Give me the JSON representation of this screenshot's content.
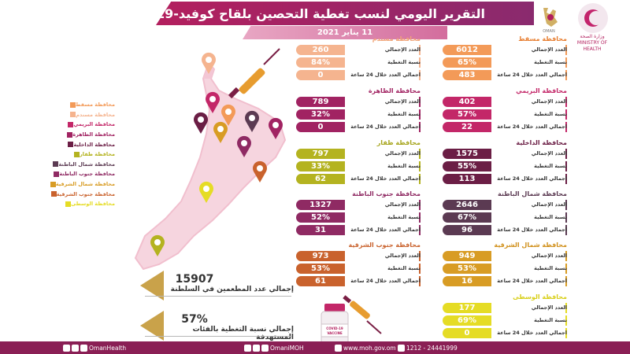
{
  "header": {
    "title": "التقرير اليومي لنسب تغطية التحصين بلقاح كوفيد-19",
    "date": "11 يناير 2021",
    "moh_logo_text": "وزارة الصحة\nMINISTRY OF HEALTH"
  },
  "row_labels": {
    "total": "العدد الإجمالي",
    "coverage": "نسبة التغطية",
    "last24": "اجمالي العدد خلال 24 ساعة"
  },
  "legend": [
    {
      "label": "محافظة مسقط",
      "color": "#f39a58"
    },
    {
      "label": "محافظة مسندم",
      "color": "#f5b48f"
    },
    {
      "label": "محافظة البريمي",
      "color": "#c32768"
    },
    {
      "label": "محافظة الظاهرة",
      "color": "#a12362"
    },
    {
      "label": "محافظة الداخلية",
      "color": "#6b1e45"
    },
    {
      "label": "محافظة ظفار",
      "color": "#b4b320"
    },
    {
      "label": "محافظة شمال الباطنة",
      "color": "#5b3a52"
    },
    {
      "label": "محافظة جنوب الباطنة",
      "color": "#8f2a63"
    },
    {
      "label": "محافظة شمال الشرقية",
      "color": "#d89c24"
    },
    {
      "label": "محافظة جنوب الشرقية",
      "color": "#c9622d"
    },
    {
      "label": "محافظة الوسطى",
      "color": "#e5dc25"
    }
  ],
  "cards": [
    {
      "name": "محافظة مسقط",
      "title_color": "#e77d2f",
      "color": "#f39a58",
      "total": "6012",
      "coverage": "65%",
      "last24": "483",
      "col": "right",
      "row": 0
    },
    {
      "name": "محافظة مسندم",
      "title_color": "#f0a477",
      "color": "#f5b48f",
      "total": "260",
      "coverage": "84%",
      "last24": "0",
      "col": "left",
      "row": 0
    },
    {
      "name": "محافظة البريمي",
      "title_color": "#c32768",
      "color": "#c32768",
      "total": "402",
      "coverage": "57%",
      "last24": "22",
      "col": "right",
      "row": 1
    },
    {
      "name": "محافظة الظاهرة",
      "title_color": "#a12362",
      "color": "#a12362",
      "total": "789",
      "coverage": "32%",
      "last24": "0",
      "col": "left",
      "row": 1
    },
    {
      "name": "محافظة الداخلية",
      "title_color": "#6b1e45",
      "color": "#6b1e45",
      "total": "1575",
      "coverage": "55%",
      "last24": "113",
      "col": "right",
      "row": 2
    },
    {
      "name": "محافظة ظفار",
      "title_color": "#a6a51d",
      "color": "#b4b320",
      "total": "797",
      "coverage": "33%",
      "last24": "62",
      "col": "left",
      "row": 2
    },
    {
      "name": "محافظة شمال الباطنة",
      "title_color": "#5b3a52",
      "color": "#5b3a52",
      "total": "2646",
      "coverage": "67%",
      "last24": "96",
      "col": "right",
      "row": 3
    },
    {
      "name": "محافظة جنوب الباطنة",
      "title_color": "#8f2a63",
      "color": "#8f2a63",
      "total": "1327",
      "coverage": "52%",
      "last24": "31",
      "col": "left",
      "row": 3
    },
    {
      "name": "محافظة شمال الشرقية",
      "title_color": "#d08f19",
      "color": "#d89c24",
      "total": "949",
      "coverage": "53%",
      "last24": "16",
      "col": "right",
      "row": 4
    },
    {
      "name": "محافظة جنوب الشرقية",
      "title_color": "#c9622d",
      "color": "#c9622d",
      "total": "973",
      "coverage": "53%",
      "last24": "61",
      "col": "left",
      "row": 4
    },
    {
      "name": "محافظة الوسطى",
      "title_color": "#d8cf18",
      "color": "#e5dc25",
      "total": "177",
      "coverage": "69%",
      "last24": "0",
      "col": "right",
      "row": 5
    }
  ],
  "totals": {
    "vaccinated_value": "15907",
    "vaccinated_label": "إجمالي عدد المطعمين في السلطنة",
    "coverage_value": "57%",
    "coverage_label": "إجمالي نسبة التغطية بالفئات المستهدفة"
  },
  "vaccine_label": "COVID-19\nVACCINE",
  "footer": {
    "handle1": "OmanHealth",
    "handle2": "OmaniMOH",
    "website": "www.moh.gov.om",
    "phone": "1212 - 24441999"
  },
  "colors": {
    "accent": "#b31f5e",
    "footer": "#8a1f55"
  }
}
